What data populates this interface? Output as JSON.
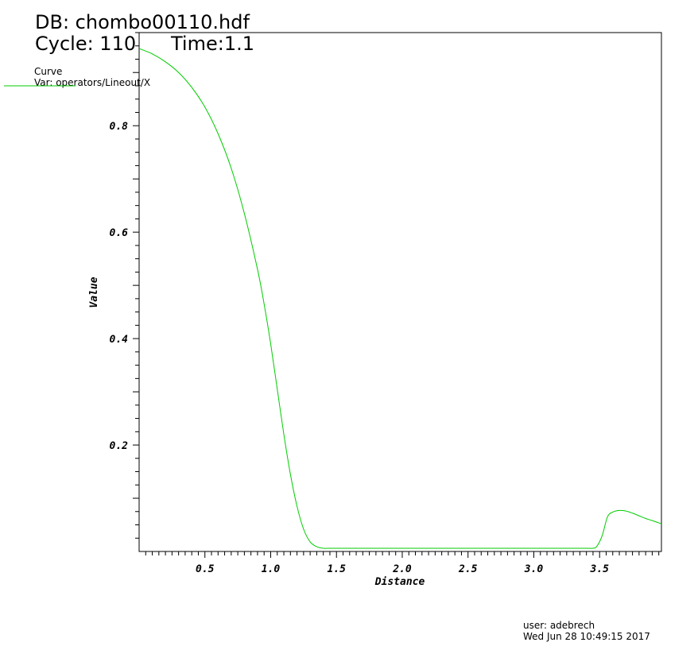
{
  "header": {
    "db": "DB: chombo00110.hdf",
    "cycle": "Cycle: 110",
    "time": "Time:1.1"
  },
  "legend": {
    "title": "Curve",
    "var": "Var: operators/Lineout/X"
  },
  "footer": {
    "user": "user: adebrech",
    "date": "Wed Jun 28 10:49:15 2017"
  },
  "colors": {
    "curve": "#00cc00",
    "axis": "#000000",
    "background": "#ffffff"
  },
  "chart_data": {
    "type": "line",
    "xlabel": "Distance",
    "ylabel": "Value",
    "xlim": [
      0.0,
      3.97
    ],
    "ylim": [
      0.0,
      0.975
    ],
    "x_ticks": [
      0.5,
      1.0,
      1.5,
      2.0,
      2.5,
      3.0,
      3.5
    ],
    "x_tick_labels": [
      "0.5",
      "1.0",
      "1.5",
      "2.0",
      "2.5",
      "3.0",
      "3.5"
    ],
    "y_ticks": [
      0.2,
      0.4,
      0.6,
      0.8
    ],
    "y_tick_labels": [
      "0.2",
      "0.4",
      "0.6",
      "0.8"
    ],
    "grid": false,
    "legend_position": "top-left",
    "series": [
      {
        "x": [
          0.0,
          0.1,
          0.2,
          0.3,
          0.4,
          0.5,
          0.6,
          0.7,
          0.8,
          0.9,
          0.95,
          1.0,
          1.05,
          1.1,
          1.15,
          1.2,
          1.25,
          1.3,
          1.35,
          1.4,
          1.45,
          1.5,
          2.0,
          2.5,
          3.0,
          3.4,
          3.45,
          3.48,
          3.52,
          3.56,
          3.6,
          3.65,
          3.7,
          3.75,
          3.8,
          3.85,
          3.9,
          3.97
        ],
        "y": [
          0.945,
          0.935,
          0.92,
          0.9,
          0.872,
          0.835,
          0.785,
          0.72,
          0.635,
          0.53,
          0.465,
          0.39,
          0.305,
          0.22,
          0.145,
          0.085,
          0.042,
          0.018,
          0.009,
          0.006,
          0.006,
          0.006,
          0.006,
          0.006,
          0.006,
          0.006,
          0.006,
          0.01,
          0.03,
          0.065,
          0.074,
          0.077,
          0.076,
          0.072,
          0.067,
          0.062,
          0.058,
          0.052
        ]
      }
    ]
  }
}
